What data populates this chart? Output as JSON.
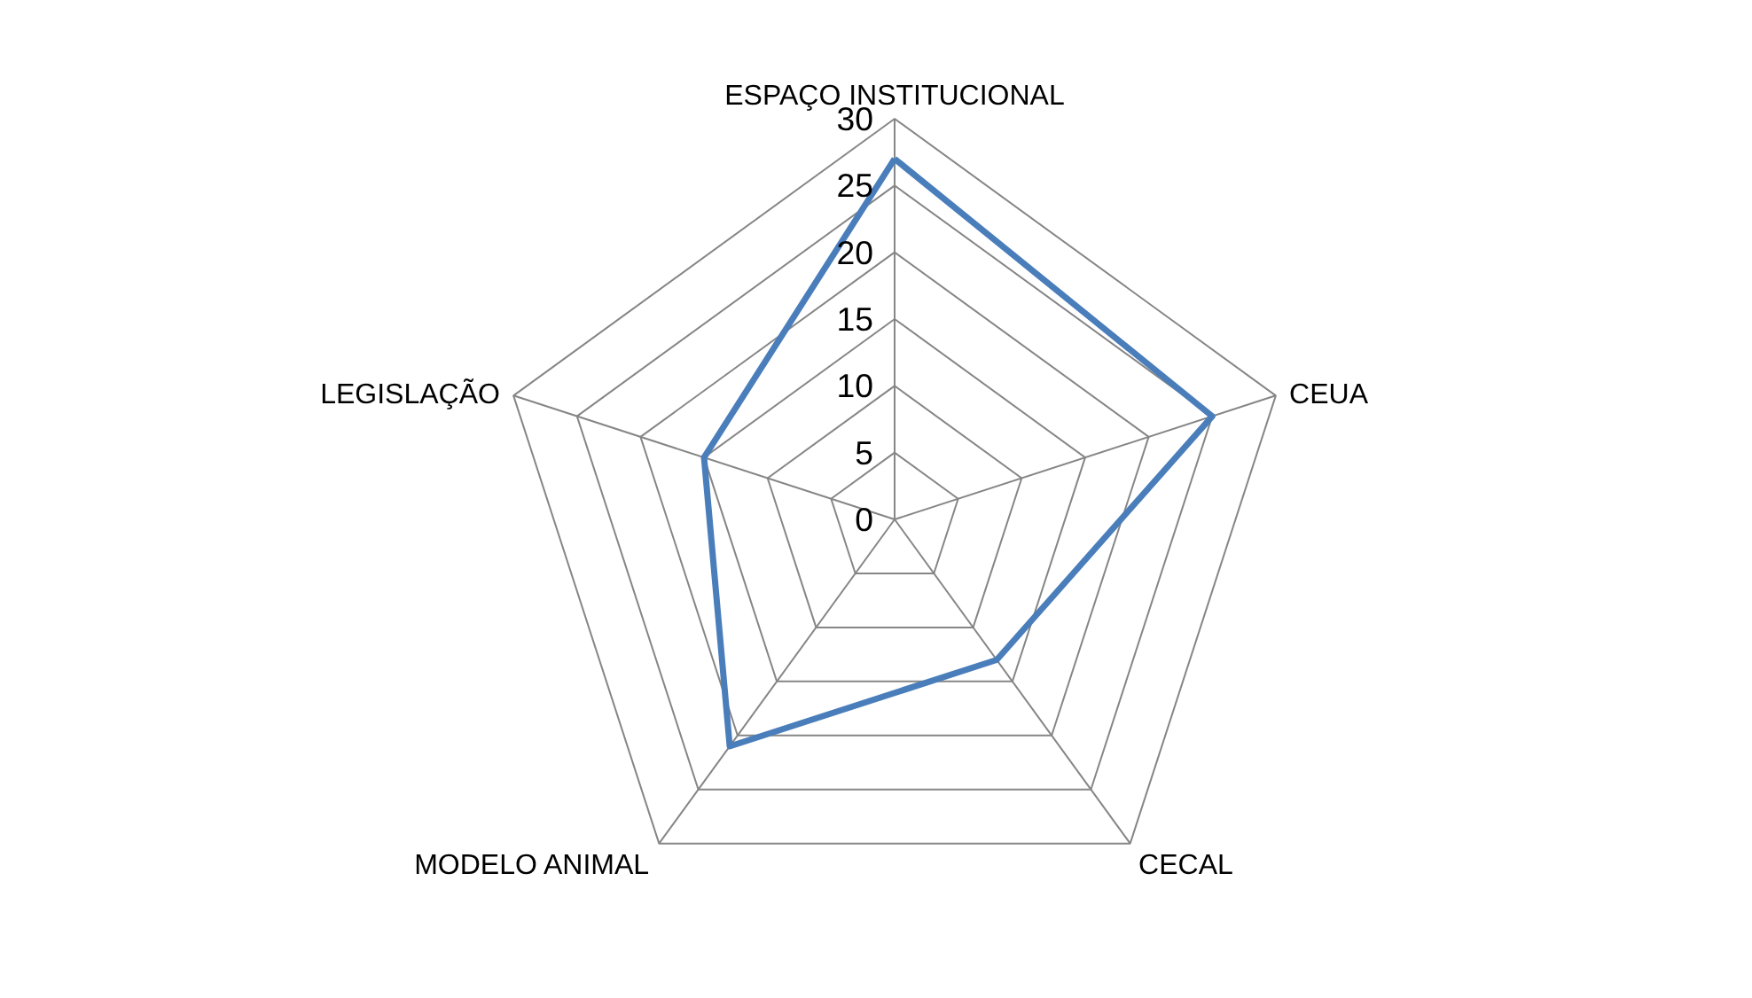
{
  "chart_data": {
    "type": "radar",
    "categories": [
      "ESPAÇO INSTITUCIONAL",
      "CEUA",
      "CECAL",
      "MODELO ANIMAL",
      "LEGISLAÇÃO"
    ],
    "series": [
      {
        "color": "#4a7ebb",
        "values": [
          27,
          25,
          13,
          21,
          15
        ]
      }
    ],
    "ylim": [
      0,
      30
    ],
    "yticks": [
      0,
      5,
      10,
      15,
      20,
      25,
      30
    ],
    "grid": true,
    "marker": "none",
    "line_style": "solid"
  }
}
